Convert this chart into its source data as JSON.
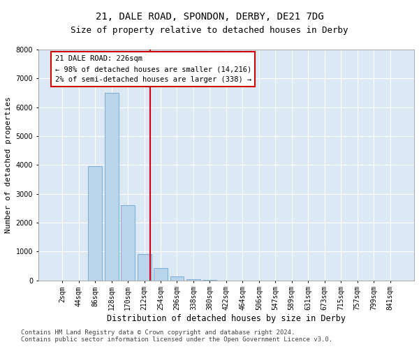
{
  "title1": "21, DALE ROAD, SPONDON, DERBY, DE21 7DG",
  "title2": "Size of property relative to detached houses in Derby",
  "xlabel": "Distribution of detached houses by size in Derby",
  "ylabel": "Number of detached properties",
  "categories": [
    "2sqm",
    "44sqm",
    "86sqm",
    "128sqm",
    "170sqm",
    "212sqm",
    "254sqm",
    "296sqm",
    "338sqm",
    "380sqm",
    "422sqm",
    "464sqm",
    "506sqm",
    "547sqm",
    "589sqm",
    "631sqm",
    "673sqm",
    "715sqm",
    "757sqm",
    "799sqm",
    "841sqm"
  ],
  "values": [
    0,
    0,
    3950,
    6500,
    2600,
    920,
    420,
    130,
    50,
    10,
    2,
    0,
    0,
    0,
    0,
    0,
    0,
    0,
    0,
    0,
    0
  ],
  "bar_color": "#bad4eb",
  "bar_edge_color": "#7aafd4",
  "bar_width": 0.85,
  "ylim": [
    0,
    8000
  ],
  "yticks": [
    0,
    1000,
    2000,
    3000,
    4000,
    5000,
    6000,
    7000,
    8000
  ],
  "property_line_x": 5.35,
  "property_line_color": "#cc0000",
  "annotation_line1": "21 DALE ROAD: 226sqm",
  "annotation_line2": "← 98% of detached houses are smaller (14,216)",
  "annotation_line3": "2% of semi-detached houses are larger (338) →",
  "footer1": "Contains HM Land Registry data © Crown copyright and database right 2024.",
  "footer2": "Contains public sector information licensed under the Open Government Licence v3.0.",
  "fig_bg_color": "#ffffff",
  "plot_bg_color": "#dce9f5",
  "grid_color": "#ffffff",
  "title1_fontsize": 10,
  "title2_fontsize": 9,
  "xlabel_fontsize": 8.5,
  "ylabel_fontsize": 8,
  "tick_fontsize": 7,
  "footer_fontsize": 6.5,
  "annotation_fontsize": 7.5
}
